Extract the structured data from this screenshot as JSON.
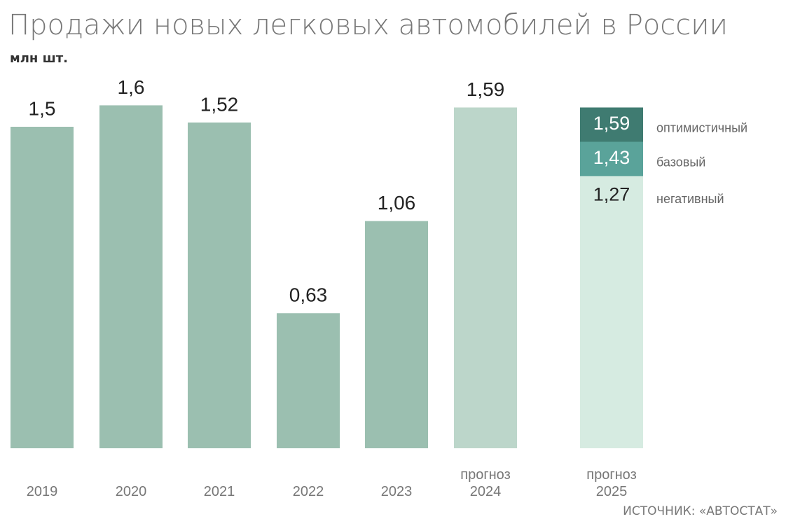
{
  "chart_data": {
    "type": "bar",
    "title": "Продажи новых легковых автомобилей в России",
    "subtitle": "млн шт.",
    "categories": [
      "2019",
      "2020",
      "2021",
      "2022",
      "2023",
      "прогноз 2024",
      "прогноз 2025"
    ],
    "values": [
      1.5,
      1.6,
      1.52,
      0.63,
      1.06,
      1.59,
      null
    ],
    "value_labels": [
      "1,5",
      "1,6",
      "1,52",
      "0,63",
      "1,06",
      "1,59",
      null
    ],
    "colors": [
      "#9bbfb0",
      "#9bbfb0",
      "#9bbfb0",
      "#9bbfb0",
      "#9bbfb0",
      "#bcd6ca",
      null
    ],
    "scenarios": [
      {
        "name": "оптимистичный",
        "value": 1.59,
        "value_label": "1,59",
        "color": "#3f7b71"
      },
      {
        "name": "базовый",
        "value": 1.43,
        "value_label": "1,43",
        "color": "#5aa39a"
      },
      {
        "name": "негативный",
        "value": 1.27,
        "value_label": "1,27",
        "color": "#d6ebe1"
      }
    ],
    "source": "ИСТОЧНИК: «АВТОСТАТ»"
  }
}
